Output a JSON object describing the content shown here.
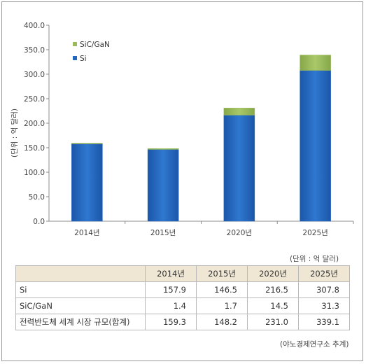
{
  "chart_data": {
    "type": "bar",
    "stacked": true,
    "categories": [
      "2014년",
      "2015년",
      "2020년",
      "2025년"
    ],
    "series": [
      {
        "name": "Si",
        "values": [
          157.9,
          146.5,
          216.5,
          307.8
        ],
        "color": "#2467bf"
      },
      {
        "name": "SiC/GaN",
        "values": [
          1.4,
          1.7,
          14.5,
          31.3
        ],
        "color": "#9bbb59"
      }
    ],
    "ylabel": "(단위 : 억 달러)",
    "ylim": [
      0,
      400
    ],
    "yticks": [
      "0.0",
      "50.0",
      "100.0",
      "150.0",
      "200.0",
      "250.0",
      "300.0",
      "350.0",
      "400.0"
    ],
    "legend_position": "top-left",
    "grid": false
  },
  "table": {
    "unit": "(단위 : 억 달러)",
    "headers": [
      "",
      "2014년",
      "2015년",
      "2020년",
      "2025년"
    ],
    "rows": [
      {
        "label": "Si",
        "values": [
          "157.9",
          "146.5",
          "216.5",
          "307.8"
        ]
      },
      {
        "label": "SiC/GaN",
        "values": [
          "1.4",
          "1.7",
          "14.5",
          "31.3"
        ]
      },
      {
        "label": "전력반도체 세계 시장 규모(합계)",
        "values": [
          "159.3",
          "148.2",
          "231.0",
          "339.1"
        ]
      }
    ],
    "source": "(야노경제연구소 추계)"
  }
}
